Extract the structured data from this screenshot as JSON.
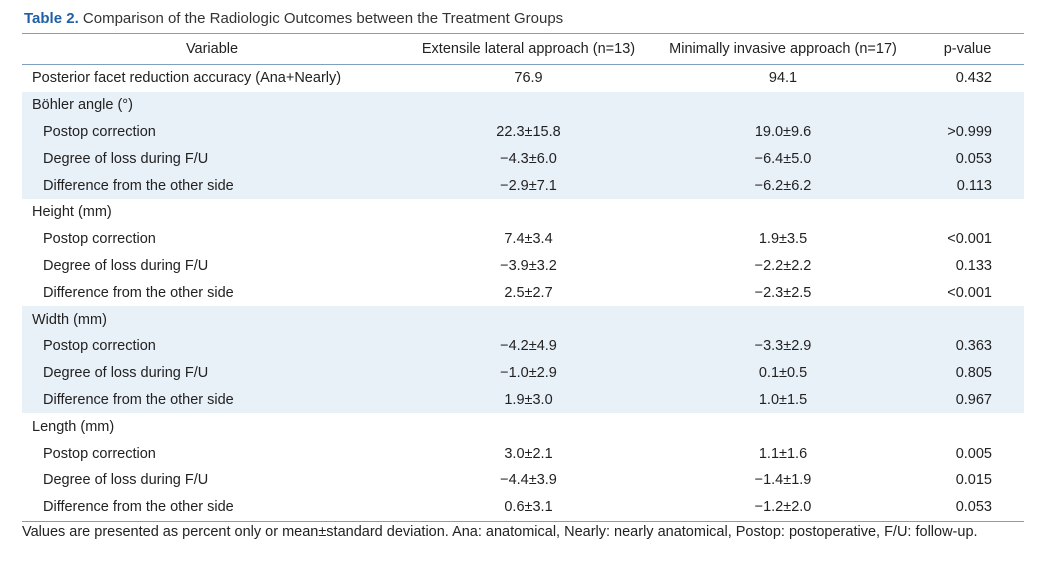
{
  "caption": {
    "number": "Table 2.",
    "text": " Comparison of the Radiologic Outcomes between the Treatment Groups"
  },
  "table": {
    "columns": [
      "Variable",
      "Extensile lateral approach (n=13)",
      "Minimally invasive approach (n=17)",
      "p-value"
    ],
    "rows": [
      {
        "label": "Posterior facet reduction accuracy (Ana+Nearly)",
        "a": "76.9",
        "b": "94.1",
        "p": "0.432",
        "indent": false,
        "shaded": false
      },
      {
        "label": "Böhler angle (°)",
        "a": "",
        "b": "",
        "p": "",
        "indent": false,
        "shaded": true
      },
      {
        "label": "Postop correction",
        "a": "22.3±15.8",
        "b": "19.0±9.6",
        "p": ">0.999",
        "indent": true,
        "shaded": true
      },
      {
        "label": "Degree of loss during F/U",
        "a": "−4.3±6.0",
        "b": "−6.4±5.0",
        "p": "0.053",
        "indent": true,
        "shaded": true
      },
      {
        "label": "Difference from the other side",
        "a": "−2.9±7.1",
        "b": "−6.2±6.2",
        "p": "0.113",
        "indent": true,
        "shaded": true
      },
      {
        "label": "Height (mm)",
        "a": "",
        "b": "",
        "p": "",
        "indent": false,
        "shaded": false
      },
      {
        "label": "Postop correction",
        "a": "7.4±3.4",
        "b": "1.9±3.5",
        "p": "<0.001",
        "indent": true,
        "shaded": false
      },
      {
        "label": "Degree of loss during F/U",
        "a": "−3.9±3.2",
        "b": "−2.2±2.2",
        "p": "0.133",
        "indent": true,
        "shaded": false
      },
      {
        "label": "Difference from the other side",
        "a": "2.5±2.7",
        "b": "−2.3±2.5",
        "p": "<0.001",
        "indent": true,
        "shaded": false
      },
      {
        "label": "Width (mm)",
        "a": "",
        "b": "",
        "p": "",
        "indent": false,
        "shaded": true
      },
      {
        "label": "Postop correction",
        "a": "−4.2±4.9",
        "b": "−3.3±2.9",
        "p": "0.363",
        "indent": true,
        "shaded": true
      },
      {
        "label": "Degree of loss during F/U",
        "a": "−1.0±2.9",
        "b": "0.1±0.5",
        "p": "0.805",
        "indent": true,
        "shaded": true
      },
      {
        "label": "Difference from the other side",
        "a": "1.9±3.0",
        "b": "1.0±1.5",
        "p": "0.967",
        "indent": true,
        "shaded": true
      },
      {
        "label": "Length (mm)",
        "a": "",
        "b": "",
        "p": "",
        "indent": false,
        "shaded": false
      },
      {
        "label": "Postop correction",
        "a": "3.0±2.1",
        "b": "1.1±1.6",
        "p": "0.005",
        "indent": true,
        "shaded": false
      },
      {
        "label": "Degree of loss during F/U",
        "a": "−4.4±3.9",
        "b": "−1.4±1.9",
        "p": "0.015",
        "indent": true,
        "shaded": false
      },
      {
        "label": "Difference from the other side",
        "a": "0.6±3.1",
        "b": "−1.2±2.0",
        "p": "0.053",
        "indent": true,
        "shaded": false
      }
    ]
  },
  "footnote": "Values are presented as percent only or mean±standard deviation. Ana: anatomical, Nearly: nearly anatomical, Postop: postoperative, F/U: follow-up.",
  "colors": {
    "accent": "#1f5fa8",
    "shade": "#e8f0f8",
    "rule": "#7f9fc0"
  }
}
